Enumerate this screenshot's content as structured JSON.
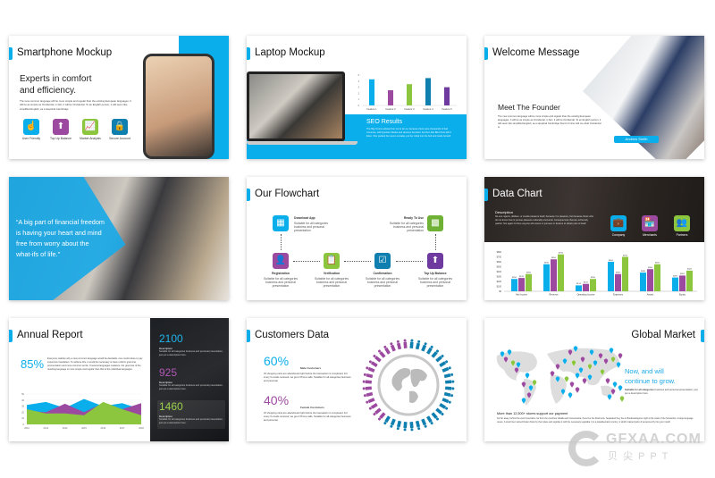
{
  "colors": {
    "blue": "#0aaeea",
    "purple": "#9c4aa0",
    "green": "#8cc63f",
    "teal": "#0f7fb0",
    "violet": "#6f3aa0"
  },
  "s1": {
    "title": "Smartphone Mockup",
    "headline1": "Experts in comfort",
    "headline2": "and efficiency.",
    "body": "The new common language will be more simple and regular than the existing European languages. It will be as simple as Occidental, in fact, it will be Occidental. To an English person, it will seem like simplified English, as a skeptical Cambridge",
    "icons": [
      {
        "label": "User Friendly",
        "icon": "touch-icon"
      },
      {
        "label": "Top Up Balance",
        "icon": "upload-icon"
      },
      {
        "label": "Market Analysis",
        "icon": "chart-icon"
      },
      {
        "label": "Secure Account",
        "icon": "lock-icon"
      }
    ]
  },
  "s2": {
    "title": "Laptop Mockup",
    "seo_title": "SEO Results",
    "seo_body": "The Big Oxmox advised her not to do so, because there were thousands of bad Commas, wild Question Marks and devious Semikoli, but the Little Blind Text didn't listen. She packed her seven versalia, put her initial into the belt and made herself",
    "chart_data": {
      "type": "bar",
      "categories": [
        "Feature 1",
        "Feature 2",
        "Feature 3",
        "Feature 4",
        "Feature 5"
      ],
      "values": [
        4.3,
        2.5,
        3.5,
        4.5,
        3.0
      ],
      "ylim": [
        0,
        5
      ],
      "yticks": [
        "0",
        "1",
        "2",
        "3",
        "4",
        "5"
      ]
    }
  },
  "s3": {
    "title": "Welcome Message",
    "heading": "Meet The Founder",
    "body": "The new common language will be more simple and regular than the existing European languages. It will be as simple as Occidental, in fact, it will be Occidental. To an English person, it will seem like simplified English, as a skeptical Cambridge friend of mine told me what Occidental is.",
    "name": "Andrew Smith"
  },
  "s4": {
    "quote": "“A big part of financial freedom is having your heart and mind free from worry about the what-ifs of life.”"
  },
  "s5": {
    "title": "Our Flowchart",
    "steps": [
      {
        "title": "Download App",
        "desc": "Suitable for all categories business and personal presentation"
      },
      {
        "title": "Ready To Use",
        "desc": "Suitable for all categories business and personal presentation"
      },
      {
        "title": "Registration",
        "desc": "Suitable for all categories business and personal presentation"
      },
      {
        "title": "Verification",
        "desc": "Suitable for all categories business and personal presentation"
      },
      {
        "title": "Confirmation",
        "desc": "Suitable for all categories business and personal presentation"
      },
      {
        "title": "Top Up Balance",
        "desc": "Suitable for all categories business and personal presentation"
      }
    ]
  },
  "s6": {
    "title": "Data Chart",
    "desc_title": "Description",
    "desc": "No one rejects, dislikes, or avoids pleasure itself, because it is pleasure, but because those who do not know how to pursue pleasure rationally encounter consequences that are extremely painful. Nor again is there anyone who loves or pursues or desires to obtain pain of itself.",
    "icons": [
      {
        "label": "Company",
        "icon": "briefcase-icon"
      },
      {
        "label": "Merchants",
        "icon": "store-icon"
      },
      {
        "label": "Partners",
        "icon": "people-icon"
      }
    ],
    "chart_data": {
      "type": "bar",
      "categories": [
        "Net Income",
        "Revenue",
        "Operating Income",
        "Expenses",
        "Assets",
        "Equity"
      ],
      "series": [
        {
          "values": [
            250,
            550,
            120,
            600,
            380,
            280
          ]
        },
        {
          "values": [
            270,
            650,
            150,
            350,
            450,
            320
          ]
        },
        {
          "values": [
            350,
            750,
            250,
            700,
            550,
            420
          ]
        }
      ],
      "ylim": [
        0,
        800
      ],
      "yticks": [
        "$0",
        "$100",
        "$200",
        "$300",
        "$400",
        "$500",
        "$600",
        "$700",
        "$800"
      ]
    }
  },
  "s7": {
    "title": "Annual Report",
    "pct": "85%",
    "body": "Everyone realizes why a new common language would be desirable: one could refuse to pay expensive translators. To achieve this, it would be necessary to have uniform grammar, pronunciation and more common words. If several languages coalesce, the grammar of the resulting language is more simple and regular than that of the individual languages.",
    "stats": [
      {
        "value": "2100",
        "label": "Description",
        "desc": "Suitable for all categories business and personal presentation, just put a description here."
      },
      {
        "value": "925",
        "label": "Description",
        "desc": "Suitable for all categories business and personal presentation, just put a description here."
      },
      {
        "value": "1460",
        "label": "Description",
        "desc": "Suitable for all categories business and personal presentation, just put a description here."
      }
    ],
    "chart_data": {
      "type": "area",
      "x": [
        "2010",
        "2012",
        "2014",
        "2015",
        "2016",
        "2017",
        "2018"
      ],
      "ylim": [
        0,
        50
      ],
      "yticks": [
        "0",
        "10",
        "20",
        "30",
        "40",
        "50"
      ],
      "series": [
        {
          "values": [
            32,
            37,
            27,
            42,
            30,
            35,
            25
          ]
        },
        {
          "values": [
            22,
            20,
            34,
            20,
            35,
            25,
            35
          ]
        },
        {
          "values": [
            25,
            18,
            18,
            15,
            37,
            25,
            15
          ]
        }
      ]
    }
  },
  "s8": {
    "title": "Customers Data",
    "male_pct": "60%",
    "male_label": "Male Customers",
    "male_desc": "Of shopping carts are abandoned right before the transaction is completed. For every 6 emails received, we get 2 Phone calls. Suitable for all categories business and personal.",
    "female_pct": "40%",
    "female_label": "Female Customers",
    "female_desc": "Of shopping carts are abandoned right before the transaction is completed. For every 6 emails received, we get 2 Phone calls. Suitable for all categories business and personal.",
    "male_share": 60
  },
  "s9": {
    "title": "Global Market",
    "headline1": "Now, and will",
    "headline2": "continue to grow.",
    "sub_bold": "Suitable for all categories",
    "sub": " business and personal presentation, just put a description here",
    "stores": "More than 12,500+ stores support our payment",
    "body": "Far far away, behind the word mountains, far from the countries Vokalia and Consonantia, there live the blind texts. Separated they live in Bookmarksgrove right at the coast of the Semantics, a large language ocean. A small river named Duden flows by their place and supplies it with the necessary regelialia. It is a paradisematic country, in which roasted parts of sentences fly into your mouth."
  },
  "watermark": {
    "text": "GFXAA.COM",
    "sub": "贝尖PPT"
  }
}
